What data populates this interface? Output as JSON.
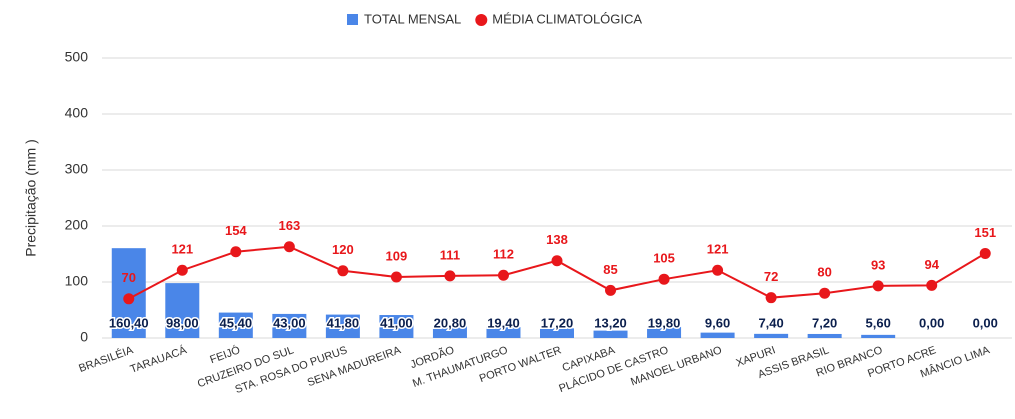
{
  "chart_data": {
    "type": "bar",
    "y_label": "Precipitação (mm )",
    "categories": [
      "BRASILÉIA",
      "TARAUACÁ",
      "FEIJÓ",
      "CRUZEIRO DO SUL",
      "STA. ROSA DO PURUS",
      "SENA MADUREIRA",
      "JORDÃO",
      "M. THAUMATURGO",
      "PORTO WALTER",
      "CAPIXABA",
      "PLÁCIDO DE CASTRO",
      "MANOEL URBANO",
      "XAPURI",
      "ASSIS BRASIL",
      "RIO BRANCO",
      "PORTO ACRE",
      "MÂNCIO LIMA"
    ],
    "series": [
      {
        "name": "TOTAL MENSAL",
        "type": "bar",
        "color": "#4a86e8",
        "values": [
          160.4,
          98.0,
          45.4,
          43.0,
          41.8,
          41.0,
          20.8,
          19.4,
          17.2,
          13.2,
          19.8,
          9.6,
          7.4,
          7.2,
          5.6,
          0.0,
          0.0
        ],
        "value_labels": [
          "160,40",
          "98,00",
          "45,40",
          "43,00",
          "41,80",
          "41,00",
          "20,80",
          "19,40",
          "17,20",
          "13,20",
          "19,80",
          "9,60",
          "7,40",
          "7,20",
          "5,60",
          "0,00",
          "0,00"
        ]
      },
      {
        "name": "MÉDIA CLIMATOLÓGICA",
        "type": "line",
        "color": "#e8171b",
        "values": [
          70,
          121,
          154,
          163,
          120,
          109,
          111,
          112,
          138,
          85,
          105,
          121,
          72,
          80,
          93,
          94,
          151
        ]
      }
    ],
    "ylim": [
      0,
      500
    ],
    "yticks": [
      0,
      100,
      200,
      300,
      400,
      500
    ],
    "grid": true,
    "legend": "top"
  }
}
